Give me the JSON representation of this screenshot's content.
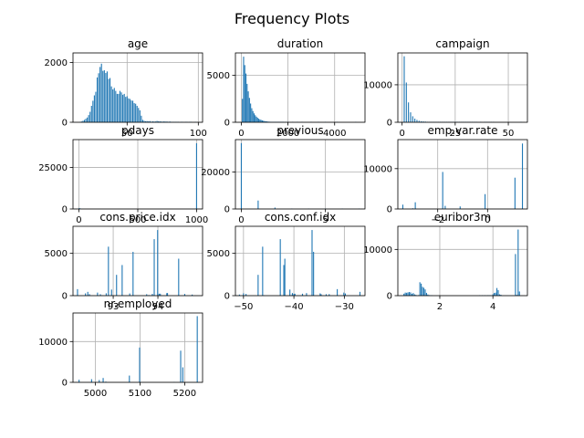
{
  "suptitle": "Frequency Plots",
  "colors": {
    "bar": "#1f77b4",
    "grid": "#b0b0b0",
    "axis": "#000000"
  },
  "chart_data": [
    {
      "type": "bar",
      "title": "age",
      "xlim": [
        12,
        103
      ],
      "ylim": [
        0,
        2320
      ],
      "xticks": [
        50,
        100
      ],
      "yticks": [
        0,
        2000
      ],
      "grid": true,
      "bins": [
        [
          17,
          2
        ],
        [
          18,
          25
        ],
        [
          19,
          50
        ],
        [
          20,
          80
        ],
        [
          21,
          120
        ],
        [
          22,
          160
        ],
        [
          23,
          240
        ],
        [
          24,
          350
        ],
        [
          25,
          550
        ],
        [
          26,
          720
        ],
        [
          27,
          900
        ],
        [
          28,
          1020
        ],
        [
          29,
          1500
        ],
        [
          30,
          1640
        ],
        [
          31,
          1850
        ],
        [
          32,
          1960
        ],
        [
          33,
          1720
        ],
        [
          34,
          1740
        ],
        [
          35,
          1650
        ],
        [
          36,
          1700
        ],
        [
          37,
          1450
        ],
        [
          38,
          1480
        ],
        [
          39,
          1200
        ],
        [
          40,
          1100
        ],
        [
          41,
          1150
        ],
        [
          42,
          1050
        ],
        [
          43,
          950
        ],
        [
          44,
          950
        ],
        [
          45,
          1050
        ],
        [
          46,
          1000
        ],
        [
          47,
          920
        ],
        [
          48,
          950
        ],
        [
          49,
          850
        ],
        [
          50,
          870
        ],
        [
          51,
          800
        ],
        [
          52,
          780
        ],
        [
          53,
          730
        ],
        [
          54,
          720
        ],
        [
          55,
          640
        ],
        [
          56,
          620
        ],
        [
          57,
          550
        ],
        [
          58,
          480
        ],
        [
          59,
          400
        ],
        [
          60,
          220
        ],
        [
          61,
          80
        ],
        [
          62,
          50
        ],
        [
          63,
          35
        ],
        [
          64,
          40
        ],
        [
          65,
          30
        ],
        [
          66,
          40
        ],
        [
          67,
          20
        ],
        [
          68,
          30
        ],
        [
          69,
          25
        ],
        [
          70,
          25
        ],
        [
          71,
          45
        ],
        [
          72,
          30
        ],
        [
          73,
          30
        ],
        [
          74,
          25
        ],
        [
          75,
          20
        ],
        [
          76,
          30
        ],
        [
          77,
          20
        ],
        [
          78,
          25
        ],
        [
          79,
          15
        ],
        [
          80,
          25
        ],
        [
          81,
          15
        ],
        [
          82,
          10
        ],
        [
          83,
          15
        ],
        [
          84,
          10
        ],
        [
          85,
          10
        ],
        [
          86,
          10
        ],
        [
          88,
          8
        ],
        [
          89,
          5
        ],
        [
          91,
          3
        ],
        [
          92,
          3
        ],
        [
          94,
          2
        ],
        [
          95,
          2
        ],
        [
          98,
          2
        ]
      ]
    },
    {
      "type": "bar",
      "title": "duration",
      "xlim": [
        -250,
        5300
      ],
      "ylim": [
        0,
        7400
      ],
      "xticks": [
        0,
        2000,
        4000
      ],
      "yticks": [
        0,
        5000
      ],
      "grid": true,
      "bins": [
        [
          50,
          2500
        ],
        [
          100,
          7000
        ],
        [
          150,
          6100
        ],
        [
          200,
          5200
        ],
        [
          250,
          4100
        ],
        [
          300,
          3300
        ],
        [
          350,
          2600
        ],
        [
          400,
          2000
        ],
        [
          450,
          1500
        ],
        [
          500,
          1200
        ],
        [
          550,
          950
        ],
        [
          600,
          750
        ],
        [
          650,
          600
        ],
        [
          700,
          480
        ],
        [
          750,
          380
        ],
        [
          800,
          300
        ],
        [
          850,
          250
        ],
        [
          900,
          200
        ],
        [
          950,
          160
        ],
        [
          1000,
          130
        ],
        [
          1050,
          100
        ],
        [
          1100,
          85
        ],
        [
          1150,
          70
        ],
        [
          1200,
          60
        ],
        [
          1250,
          50
        ],
        [
          1300,
          40
        ],
        [
          1350,
          35
        ],
        [
          1400,
          28
        ],
        [
          1450,
          22
        ],
        [
          1500,
          20
        ],
        [
          1550,
          15
        ],
        [
          1600,
          12
        ],
        [
          1650,
          10
        ],
        [
          1700,
          9
        ],
        [
          1750,
          8
        ],
        [
          1800,
          6
        ],
        [
          1900,
          5
        ],
        [
          2000,
          4
        ],
        [
          2200,
          3
        ],
        [
          2400,
          2
        ],
        [
          2600,
          2
        ],
        [
          3000,
          1
        ],
        [
          3300,
          1
        ],
        [
          3600,
          1
        ],
        [
          4100,
          1
        ],
        [
          4900,
          1
        ]
      ]
    },
    {
      "type": "bar",
      "title": "campaign",
      "xlim": [
        -2,
        59
      ],
      "ylim": [
        0,
        18500
      ],
      "xticks": [
        0,
        25,
        50
      ],
      "yticks": [
        0,
        10000
      ],
      "grid": true,
      "bins": [
        [
          1,
          17600
        ],
        [
          2,
          10600
        ],
        [
          3,
          5300
        ],
        [
          4,
          2650
        ],
        [
          5,
          1600
        ],
        [
          6,
          980
        ],
        [
          7,
          630
        ],
        [
          8,
          400
        ],
        [
          9,
          280
        ],
        [
          10,
          230
        ],
        [
          11,
          180
        ],
        [
          12,
          125
        ],
        [
          13,
          95
        ],
        [
          14,
          70
        ],
        [
          15,
          50
        ],
        [
          16,
          50
        ],
        [
          17,
          58
        ],
        [
          18,
          33
        ],
        [
          19,
          26
        ],
        [
          20,
          30
        ],
        [
          21,
          24
        ],
        [
          22,
          17
        ],
        [
          23,
          16
        ],
        [
          24,
          15
        ],
        [
          25,
          8
        ],
        [
          26,
          8
        ],
        [
          27,
          11
        ],
        [
          28,
          8
        ],
        [
          29,
          10
        ],
        [
          30,
          7
        ],
        [
          31,
          7
        ],
        [
          32,
          4
        ],
        [
          33,
          4
        ],
        [
          34,
          3
        ],
        [
          35,
          5
        ],
        [
          37,
          1
        ],
        [
          39,
          1
        ],
        [
          40,
          2
        ],
        [
          41,
          1
        ],
        [
          42,
          2
        ],
        [
          43,
          2
        ],
        [
          56,
          1
        ]
      ]
    },
    {
      "type": "bar",
      "title": "pdays",
      "xlim": [
        -50,
        1050
      ],
      "ylim": [
        0,
        41800
      ],
      "xticks": [
        0,
        500,
        1000
      ],
      "yticks": [
        0,
        25000
      ],
      "grid": true,
      "bins": [
        [
          0,
          15
        ],
        [
          3,
          440
        ],
        [
          6,
          410
        ],
        [
          9,
          65
        ],
        [
          12,
          60
        ],
        [
          15,
          25
        ],
        [
          999,
          39600
        ]
      ]
    },
    {
      "type": "bar",
      "title": "previous",
      "xlim": [
        -0.35,
        7.35
      ],
      "ylim": [
        0,
        37500
      ],
      "xticks": [
        0,
        5
      ],
      "yticks": [
        0,
        20000
      ],
      "grid": true,
      "bins": [
        [
          0,
          35600
        ],
        [
          1,
          4560
        ],
        [
          2,
          750
        ],
        [
          3,
          220
        ],
        [
          4,
          70
        ],
        [
          5,
          18
        ],
        [
          6,
          5
        ],
        [
          7,
          1
        ]
      ]
    },
    {
      "type": "bar",
      "title": "emp.var.rate",
      "xlim": [
        -3.6,
        1.6
      ],
      "ylim": [
        0,
        17200
      ],
      "xticks": [
        -2,
        0
      ],
      "yticks": [
        0,
        10000
      ],
      "grid": true,
      "bins": [
        [
          -3.4,
          1070
        ],
        [
          -3.0,
          170
        ],
        [
          -2.9,
          1660
        ],
        [
          -1.8,
          9180
        ],
        [
          -1.7,
          770
        ],
        [
          -1.1,
          630
        ],
        [
          -0.2,
          10
        ],
        [
          -0.1,
          3680
        ],
        [
          1.1,
          7760
        ],
        [
          1.4,
          16230
        ]
      ]
    },
    {
      "type": "bar",
      "title": "cons.price.idx",
      "xlim": [
        92.1,
        95.0
      ],
      "ylim": [
        0,
        8200
      ],
      "xticks": [
        93,
        94
      ],
      "yticks": [
        0,
        5000
      ],
      "grid": true,
      "bins": [
        [
          92.201,
          770
        ],
        [
          92.379,
          270
        ],
        [
          92.431,
          450
        ],
        [
          92.469,
          180
        ],
        [
          92.649,
          360
        ],
        [
          92.713,
          170
        ],
        [
          92.756,
          10
        ],
        [
          92.843,
          280
        ],
        [
          92.893,
          5790
        ],
        [
          92.963,
          720
        ],
        [
          93.075,
          2460
        ],
        [
          93.2,
          3620
        ],
        [
          93.369,
          260
        ],
        [
          93.444,
          5180
        ],
        [
          93.749,
          170
        ],
        [
          93.798,
          70
        ],
        [
          93.876,
          210
        ],
        [
          93.918,
          6680
        ],
        [
          93.994,
          7760
        ],
        [
          94.027,
          230
        ],
        [
          94.055,
          230
        ],
        [
          94.199,
          300
        ],
        [
          94.215,
          310
        ],
        [
          94.465,
          4370
        ],
        [
          94.601,
          200
        ],
        [
          94.767,
          130
        ]
      ]
    },
    {
      "type": "bar",
      "title": "cons.conf.idx",
      "xlim": [
        -51.6,
        -25.9
      ],
      "ylim": [
        0,
        8200
      ],
      "xticks": [
        -50,
        -40,
        -30
      ],
      "yticks": [
        0,
        5000
      ],
      "grid": true,
      "bins": [
        [
          -50.8,
          130
        ],
        [
          -50.0,
          280
        ],
        [
          -49.5,
          200
        ],
        [
          -47.1,
          2460
        ],
        [
          -46.2,
          5790
        ],
        [
          -45.9,
          10
        ],
        [
          -42.7,
          6680
        ],
        [
          -42.0,
          3620
        ],
        [
          -41.8,
          4370
        ],
        [
          -40.8,
          720
        ],
        [
          -40.4,
          70
        ],
        [
          -40.3,
          310
        ],
        [
          -40.0,
          210
        ],
        [
          -39.8,
          230
        ],
        [
          -38.3,
          230
        ],
        [
          -37.5,
          300
        ],
        [
          -36.4,
          7760
        ],
        [
          -36.1,
          5180
        ],
        [
          -34.8,
          270
        ],
        [
          -34.6,
          170
        ],
        [
          -33.6,
          170
        ],
        [
          -33.0,
          180
        ],
        [
          -31.4,
          770
        ],
        [
          -30.1,
          360
        ],
        [
          -29.8,
          260
        ],
        [
          -26.9,
          450
        ]
      ]
    },
    {
      "type": "bar",
      "title": "euribor3m",
      "xlim": [
        0.42,
        5.3
      ],
      "ylim": [
        0,
        15000
      ],
      "xticks": [
        2,
        4
      ],
      "yticks": [
        0,
        10000
      ],
      "grid": true,
      "bins": [
        [
          0.65,
          420
        ],
        [
          0.7,
          660
        ],
        [
          0.75,
          620
        ],
        [
          0.8,
          700
        ],
        [
          0.85,
          780
        ],
        [
          0.9,
          700
        ],
        [
          0.95,
          380
        ],
        [
          1.0,
          560
        ],
        [
          1.05,
          280
        ],
        [
          1.1,
          160
        ],
        [
          1.2,
          120
        ],
        [
          1.25,
          2900
        ],
        [
          1.3,
          2600
        ],
        [
          1.35,
          1900
        ],
        [
          1.4,
          1700
        ],
        [
          1.45,
          1350
        ],
        [
          1.5,
          600
        ],
        [
          1.55,
          250
        ],
        [
          1.6,
          120
        ],
        [
          1.65,
          80
        ],
        [
          1.7,
          40
        ],
        [
          3.5,
          12
        ],
        [
          3.6,
          10
        ],
        [
          3.7,
          12
        ],
        [
          3.8,
          30
        ],
        [
          3.85,
          70
        ],
        [
          3.9,
          50
        ],
        [
          4.0,
          320
        ],
        [
          4.05,
          580
        ],
        [
          4.1,
          650
        ],
        [
          4.15,
          1650
        ],
        [
          4.2,
          1200
        ],
        [
          4.25,
          280
        ],
        [
          4.3,
          200
        ],
        [
          4.85,
          9000
        ],
        [
          4.9,
          150
        ],
        [
          4.95,
          14300
        ],
        [
          5.0,
          900
        ]
      ]
    },
    {
      "type": "bar",
      "title": "nr.employed",
      "xlim": [
        4950,
        5240
      ],
      "ylim": [
        0,
        17000
      ],
      "xticks": [
        5000,
        5100,
        5200
      ],
      "yticks": [
        0,
        10000
      ],
      "grid": true,
      "bins": [
        [
          4963.6,
          640
        ],
        [
          4991.6,
          770
        ],
        [
          5008.7,
          570
        ],
        [
          5017.5,
          1070
        ],
        [
          5023.5,
          170
        ],
        [
          5076.2,
          1660
        ],
        [
          5099.1,
          8530
        ],
        [
          5176.3,
          10
        ],
        [
          5191.0,
          7760
        ],
        [
          5195.8,
          3680
        ],
        [
          5228.1,
          16230
        ]
      ]
    }
  ]
}
